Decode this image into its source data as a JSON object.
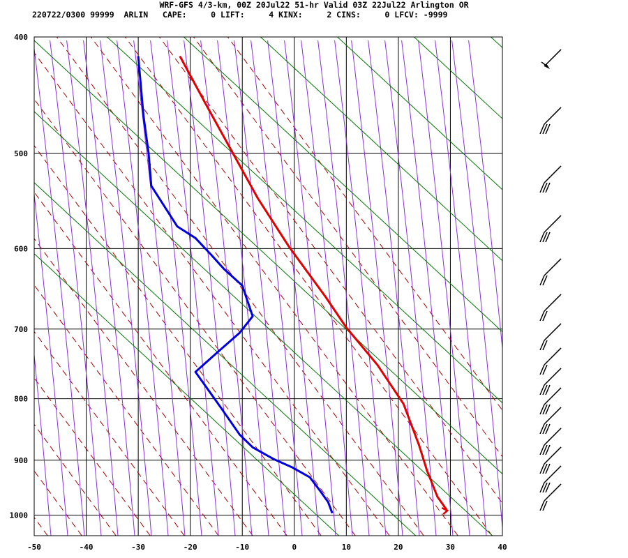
{
  "header": {
    "title": "WRF-GFS 4/3-km, 00Z 20Jul22 51-hr Valid 03Z 22Jul22 Arlington OR",
    "stats": "220722/0300 99999  ARLIN   CAPE:     0 LIFT:     4 KINX:     2 CINS:     0 LFCV: -9999"
  },
  "colors": {
    "temperature": "#e00000",
    "dewpoint": "#0000dd",
    "dry_adiabat": "#aa0000",
    "moist_adiabat": "#8a2be2",
    "mixing_ratio": "#007700",
    "grid": "#000000"
  },
  "chart_data": {
    "type": "line",
    "title": "",
    "xlabel": "",
    "ylabel": "",
    "xlim": [
      -50,
      40
    ],
    "ylim": [
      1040,
      400
    ],
    "y_scale": "log",
    "grid": true,
    "x_ticks": [
      -50,
      -40,
      -30,
      -20,
      -10,
      0,
      10,
      20,
      30,
      40
    ],
    "y_ticks": [
      400,
      500,
      600,
      700,
      800,
      900,
      1000
    ],
    "series": [
      {
        "key": "temperature",
        "points": [
          [
            -22,
            415
          ],
          [
            -17,
            455
          ],
          [
            -12,
            498
          ],
          [
            -7,
            545
          ],
          [
            -1,
            598
          ],
          [
            6,
            658
          ],
          [
            10,
            698
          ],
          [
            16,
            750
          ],
          [
            21,
            808
          ],
          [
            24,
            875
          ],
          [
            25.5,
            918
          ],
          [
            27.5,
            965
          ],
          [
            29.3,
            990
          ]
        ]
      },
      {
        "key": "dewpoint",
        "points": [
          [
            -30,
            415
          ],
          [
            -29,
            465
          ],
          [
            -28,
            500
          ],
          [
            -27.5,
            532
          ],
          [
            -22.5,
            575
          ],
          [
            -19,
            588
          ],
          [
            -16,
            607
          ],
          [
            -13.5,
            624
          ],
          [
            -10,
            644
          ],
          [
            -8,
            683
          ],
          [
            -10.5,
            705
          ],
          [
            -14.5,
            730
          ],
          [
            -19,
            760
          ],
          [
            -14,
            815
          ],
          [
            -10.5,
            857
          ],
          [
            -8,
            878
          ],
          [
            -4,
            898
          ],
          [
            -0.5,
            912
          ],
          [
            3,
            930
          ],
          [
            5,
            955
          ],
          [
            6.5,
            975
          ],
          [
            7.3,
            996
          ]
        ]
      }
    ]
  }
}
